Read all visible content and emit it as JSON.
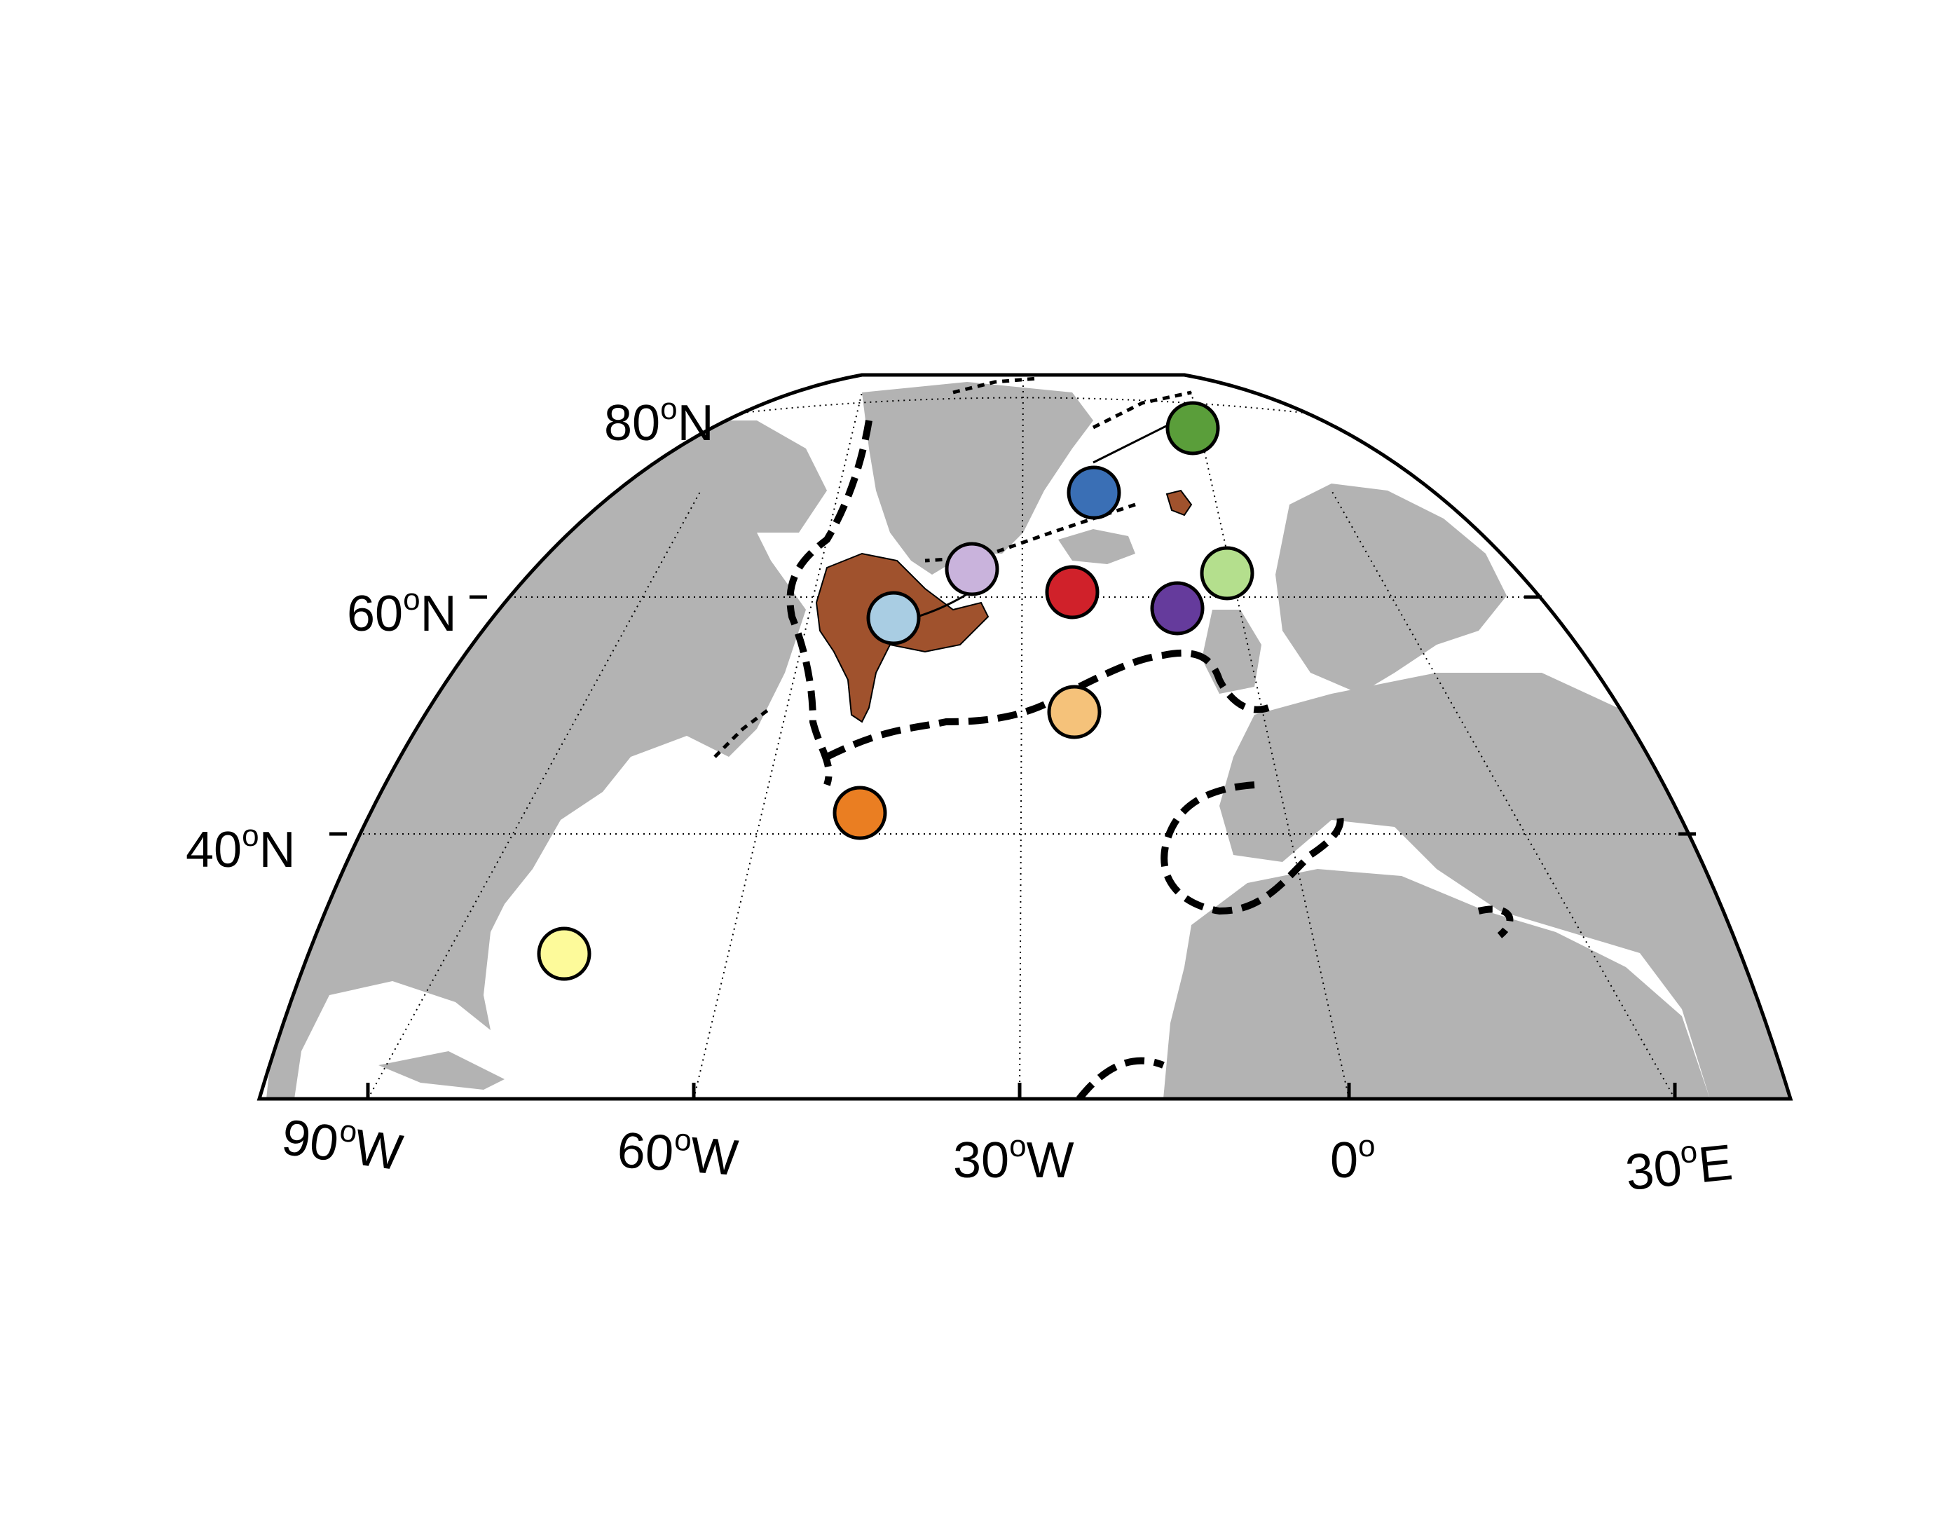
{
  "map": {
    "projection": "azimuthal (North-polar)",
    "region": "North Atlantic",
    "latitude_labels": [
      {
        "id": "lat-80",
        "value": "80",
        "degree": "o",
        "hemisphere": "N"
      },
      {
        "id": "lat-60",
        "value": "60",
        "degree": "o",
        "hemisphere": "N"
      },
      {
        "id": "lat-40",
        "value": "40",
        "degree": "o",
        "hemisphere": "N"
      }
    ],
    "longitude_labels": [
      {
        "id": "lon-90w",
        "value": "90",
        "degree": "o",
        "hemisphere": "W"
      },
      {
        "id": "lon-60w",
        "value": "60",
        "degree": "o",
        "hemisphere": "W"
      },
      {
        "id": "lon-30w",
        "value": "30",
        "degree": "o",
        "hemisphere": "W"
      },
      {
        "id": "lon-0",
        "value": "0",
        "degree": "o",
        "hemisphere": ""
      },
      {
        "id": "lon-30e",
        "value": "30",
        "degree": "o",
        "hemisphere": "E"
      }
    ],
    "colors": {
      "land": "#b3b3b3",
      "ocean": "#ffffff",
      "highlight_region": "#a0522d",
      "contour": "#000000",
      "graticule": "#000000"
    },
    "sites": [
      {
        "id": "site-dark-green",
        "color": "#5a9e3a",
        "lon": -11,
        "lat": 75
      },
      {
        "id": "site-blue",
        "color": "#3a6fb5",
        "lon": -20,
        "lat": 70
      },
      {
        "id": "site-lavender",
        "color": "#c9b3dc",
        "lon": -36,
        "lat": 65
      },
      {
        "id": "site-light-blue",
        "color": "#a9cde3",
        "lon": -44,
        "lat": 60
      },
      {
        "id": "site-red",
        "color": "#d0212a",
        "lon": -24,
        "lat": 61
      },
      {
        "id": "site-purple",
        "color": "#653b9c",
        "lon": -12,
        "lat": 60
      },
      {
        "id": "site-light-green",
        "color": "#b4df8d",
        "lon": -6,
        "lat": 63
      },
      {
        "id": "site-tan",
        "color": "#f5c27a",
        "lon": -26,
        "lat": 50
      },
      {
        "id": "site-orange",
        "color": "#ea7e22",
        "lon": -48,
        "lat": 42
      },
      {
        "id": "site-yellow",
        "color": "#fdfa9a",
        "lon": -74,
        "lat": 31
      }
    ]
  }
}
